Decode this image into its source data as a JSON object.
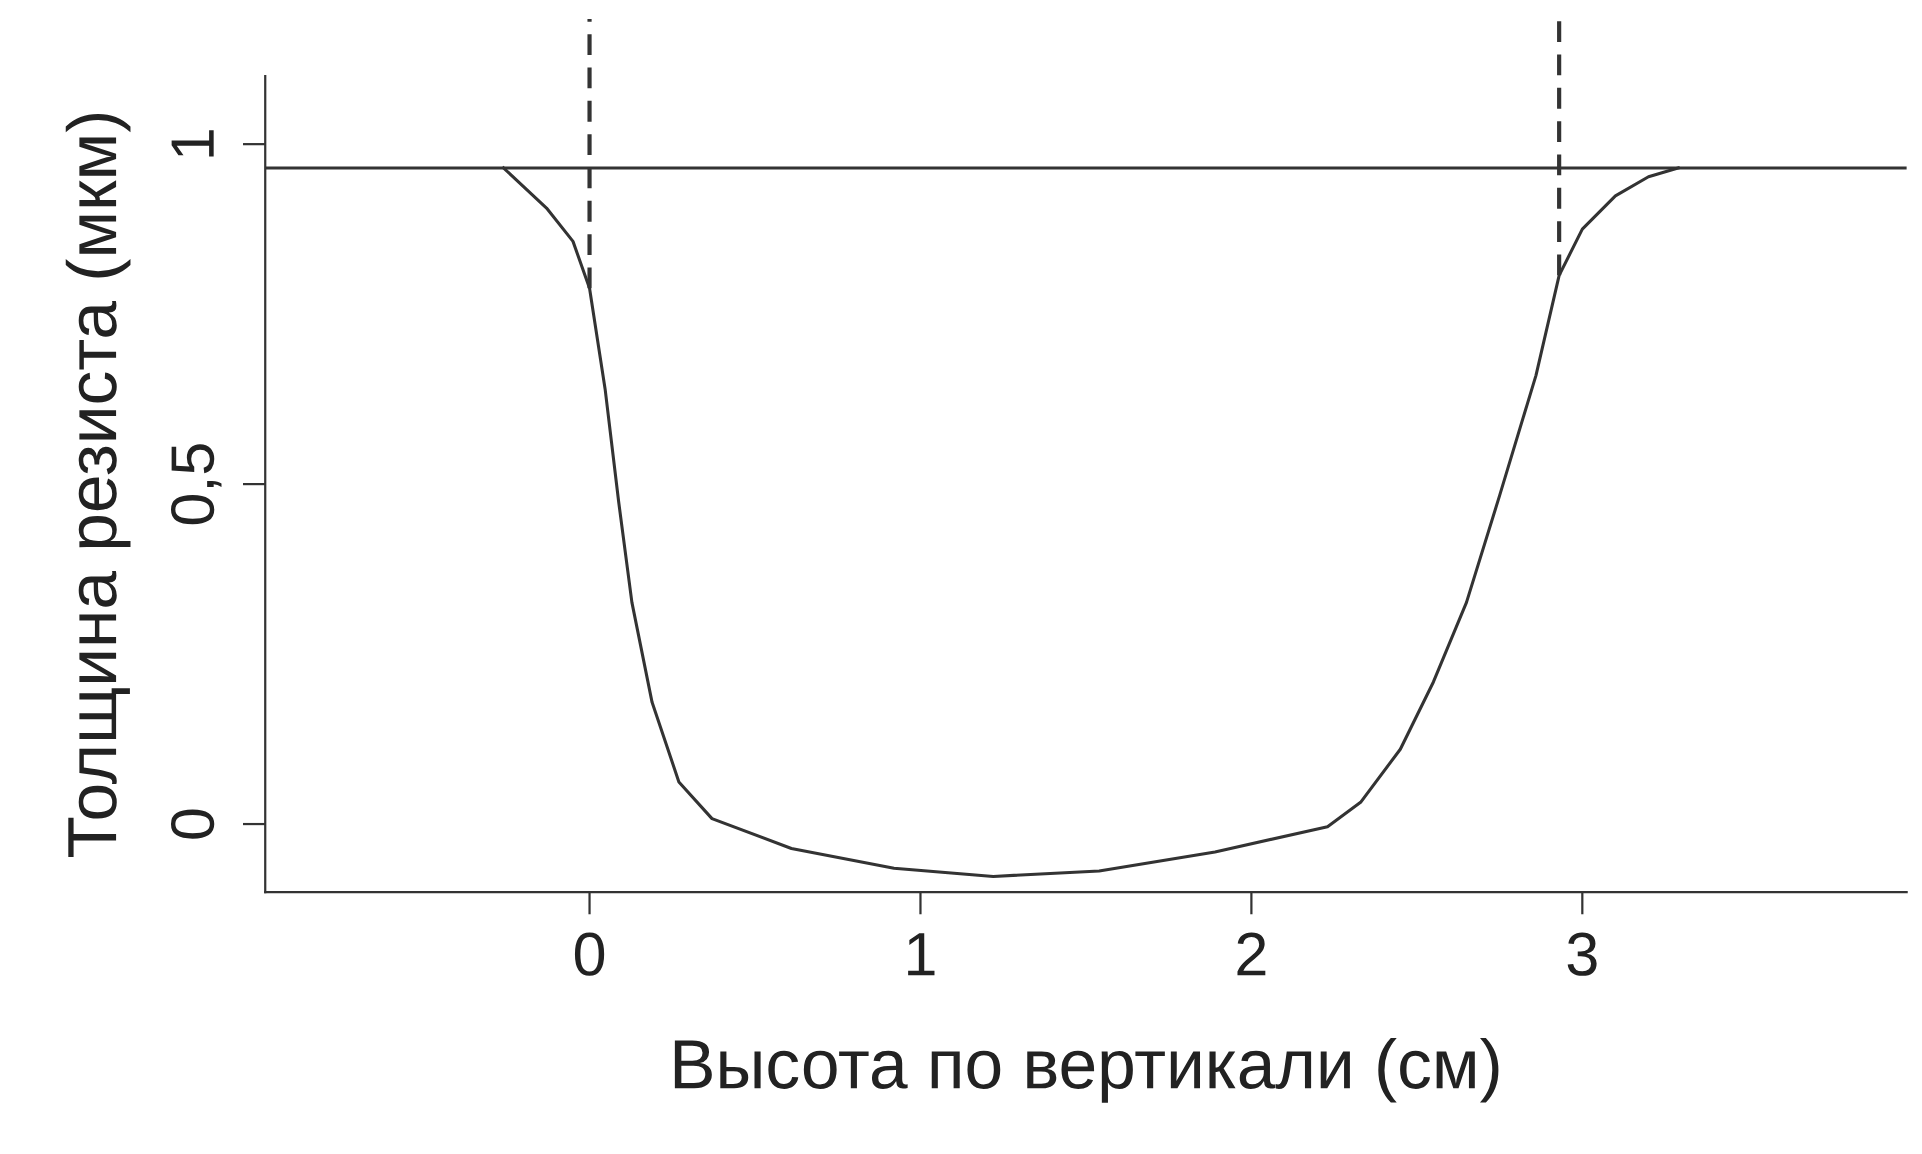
{
  "chart_data": {
    "type": "line",
    "xlabel": "Высота по вертикали (см)",
    "ylabel": "Толщина резиста (мкм)",
    "xlim": [
      -0.98,
      3.98
    ],
    "ylim": [
      -0.1,
      1.1
    ],
    "xticks": [
      0,
      1,
      2,
      3
    ],
    "yticks": [
      0,
      {
        "value": 0.5,
        "label": "0,5"
      },
      1
    ],
    "grid": false,
    "legend": false,
    "marker": "none",
    "line_style": "solid",
    "series": [
      {
        "color": "#333333",
        "x": [
          -0.26,
          -0.13,
          -0.05,
          0.0,
          0.047,
          0.088,
          0.128,
          0.189,
          0.27,
          0.37,
          0.61,
          0.92,
          1.22,
          1.54,
          1.89,
          2.23,
          2.33,
          2.45,
          2.55,
          2.65,
          2.75,
          2.86,
          2.93,
          3.0,
          3.1,
          3.2,
          3.29
        ],
        "values": [
          0.965,
          0.906,
          0.857,
          0.788,
          0.64,
          0.474,
          0.326,
          0.179,
          0.062,
          0.008,
          -0.036,
          -0.065,
          -0.077,
          -0.069,
          -0.041,
          -0.004,
          0.032,
          0.11,
          0.209,
          0.326,
          0.483,
          0.66,
          0.807,
          0.875,
          0.924,
          0.952,
          0.965
        ]
      }
    ],
    "ref_lines": [
      {
        "axis": "y",
        "value": 0.965,
        "color": "#333333",
        "line_style": "solid"
      },
      {
        "axis": "x",
        "value": 0,
        "color": "#333333",
        "line_style": "dashed"
      },
      {
        "axis": "x",
        "value": 2.93,
        "color": "#333333",
        "line_style": "dashed"
      }
    ]
  }
}
